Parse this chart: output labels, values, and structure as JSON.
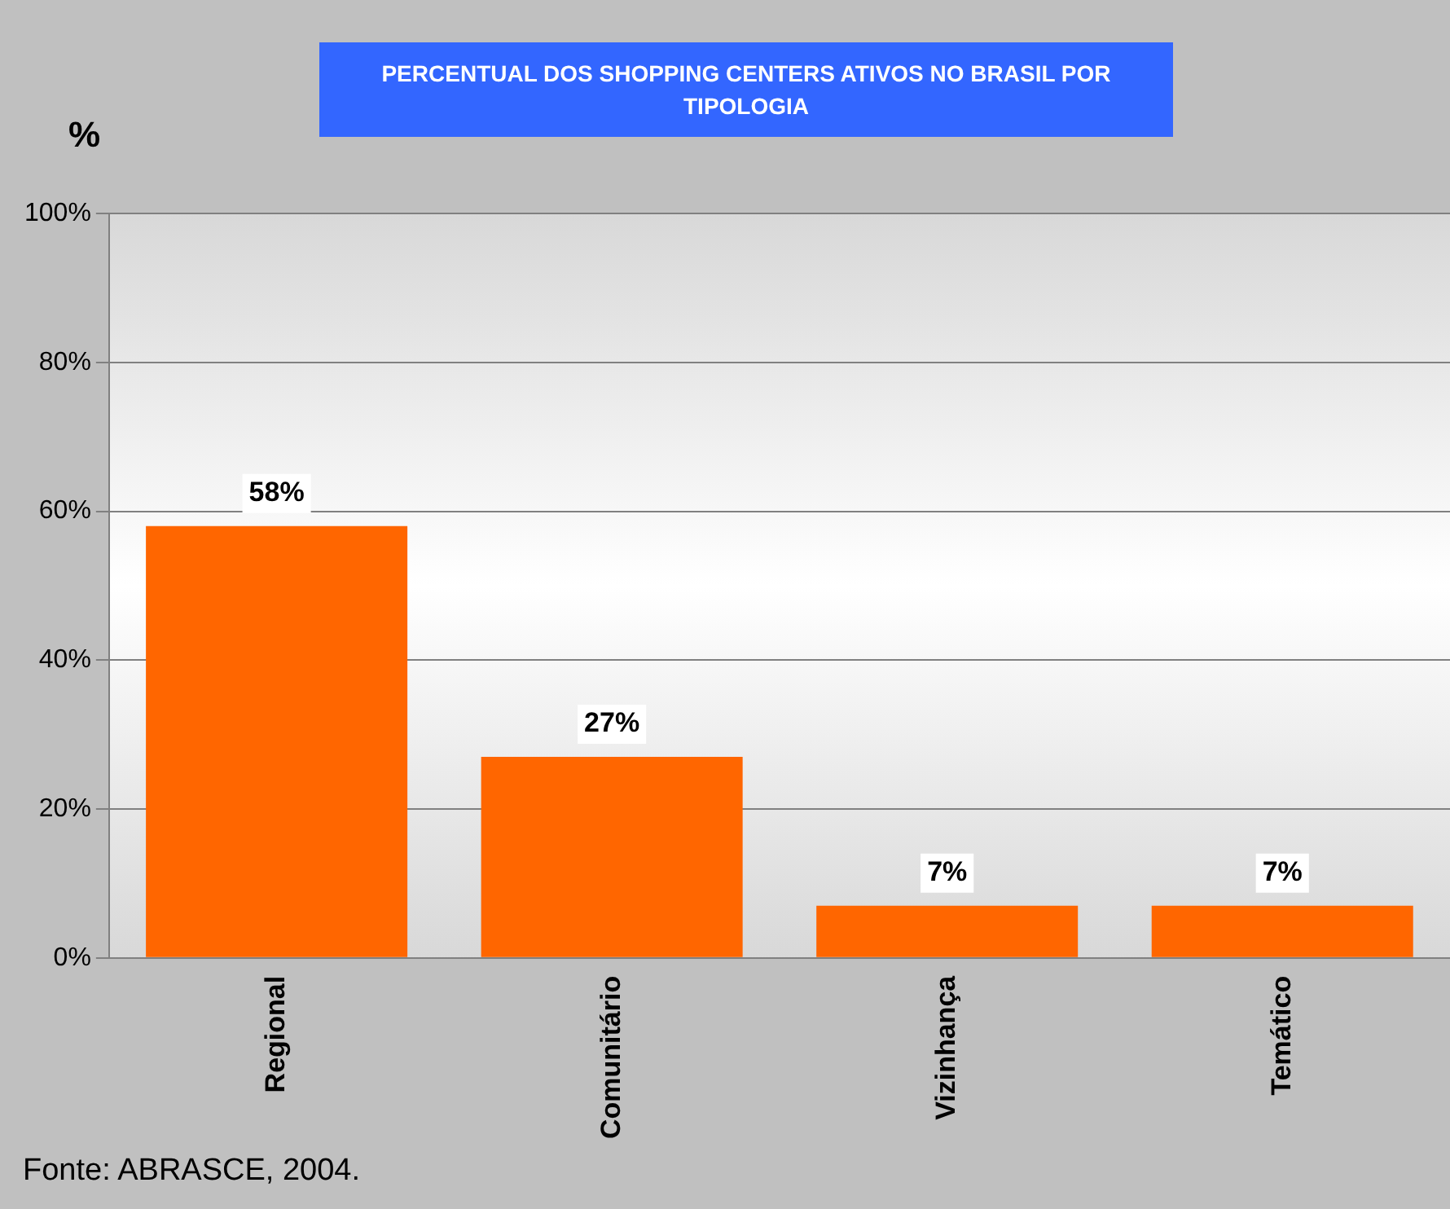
{
  "chart_data": {
    "type": "bar",
    "title": "PERCENTUAL DOS SHOPPING CENTERS ATIVOS NO BRASIL POR TIPOLOGIA",
    "ylabel": "%",
    "categories": [
      "Regional",
      "Comunitário",
      "Vizinhança",
      "Temático"
    ],
    "values": [
      58,
      27,
      7,
      7
    ],
    "color": "#ff6600",
    "value_labels": [
      "58%",
      "27%",
      "7%",
      "7%"
    ],
    "ylim": [
      0,
      100
    ],
    "yticks": [
      {
        "value": 0,
        "label": "0%"
      },
      {
        "value": 20,
        "label": "20%"
      },
      {
        "value": 40,
        "label": "40%"
      },
      {
        "value": 60,
        "label": "60%"
      },
      {
        "value": 80,
        "label": "80%"
      },
      {
        "value": 100,
        "label": "100%"
      }
    ],
    "grid": "y",
    "legend": false,
    "annotations": [
      "Fonte: ABRASCE, 2004."
    ]
  }
}
